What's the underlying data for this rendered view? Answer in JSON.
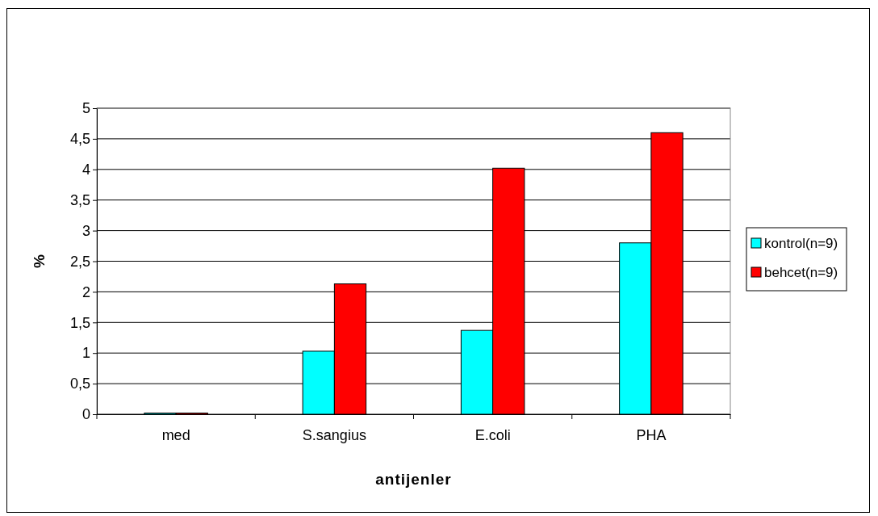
{
  "chart_data": {
    "type": "bar",
    "xlabel": "antijenler",
    "ylabel": "%",
    "categories": [
      "med",
      "S.sangius",
      "E.coli",
      "PHA"
    ],
    "series": [
      {
        "name": "kontrol(n=9)",
        "color": "#00ffff",
        "values": [
          0.02,
          1.03,
          1.37,
          2.8
        ]
      },
      {
        "name": "behcet(n=9)",
        "color": "#ff0000",
        "values": [
          0.02,
          2.13,
          4.02,
          4.6
        ]
      }
    ],
    "ylim": [
      0,
      5
    ],
    "yticks": [
      0,
      {
        "value": 0.5,
        "label": "0,5"
      },
      1,
      {
        "value": 1.5,
        "label": "1,5"
      },
      2,
      {
        "value": 2.5,
        "label": "2,5"
      },
      3,
      {
        "value": 3.5,
        "label": "3,5"
      },
      4,
      {
        "value": 4.5,
        "label": "4,5"
      },
      5
    ],
    "grid": "y",
    "legend": "right"
  }
}
